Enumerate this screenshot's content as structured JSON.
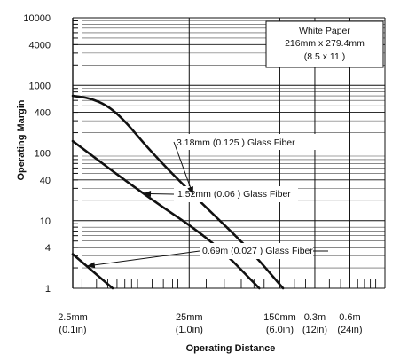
{
  "chart_data": {
    "type": "line",
    "xlabel": "Operating Distance",
    "ylabel": "Operating Margin",
    "x_scale": "log",
    "y_scale": "log",
    "xlim_mm": [
      2.5,
      1200
    ],
    "ylim": [
      1,
      10000
    ],
    "y_ticks": [
      {
        "value": 1,
        "label": "1"
      },
      {
        "value": 4,
        "label": "4"
      },
      {
        "value": 10,
        "label": "10"
      },
      {
        "value": 40,
        "label": "40"
      },
      {
        "value": 100,
        "label": "100"
      },
      {
        "value": 400,
        "label": "400"
      },
      {
        "value": 1000,
        "label": "1000"
      },
      {
        "value": 4000,
        "label": "4000"
      },
      {
        "value": 10000,
        "label": "10000"
      }
    ],
    "x_ticks": [
      {
        "value_mm": 2.5,
        "label": "2.5mm",
        "sublabel": "(0.1in)"
      },
      {
        "value_mm": 25,
        "label": "25mm",
        "sublabel": "(1.0in)"
      },
      {
        "value_mm": 150,
        "label": "150mm",
        "sublabel": "(6.0in)"
      },
      {
        "value_mm": 300,
        "label": "0.3m",
        "sublabel": "(12in)"
      },
      {
        "value_mm": 600,
        "label": "0.6m",
        "sublabel": "(24in)"
      }
    ],
    "series": [
      {
        "name": "3.18mm (0.125 ) Glass Fiber",
        "x_mm": [
          2.5,
          3.5,
          5,
          7,
          12,
          30,
          80,
          160
        ],
        "y": [
          700,
          650,
          500,
          300,
          100,
          20,
          4,
          1
        ]
      },
      {
        "name": "1.52mm (0.06 ) Glass Fiber",
        "x_mm": [
          2.5,
          10,
          40,
          100
        ],
        "y": [
          150,
          25,
          5,
          1
        ]
      },
      {
        "name": "0.69m (0.027 ) Glass Fiber",
        "x_mm": [
          2.5,
          5.5
        ],
        "y": [
          3.2,
          1
        ]
      }
    ],
    "info_box": {
      "line1": "White Paper",
      "line2": "216mm x 279.4mm",
      "line3": "(8.5   x 11   )"
    },
    "grid": true,
    "legend": "annotations with arrows"
  }
}
